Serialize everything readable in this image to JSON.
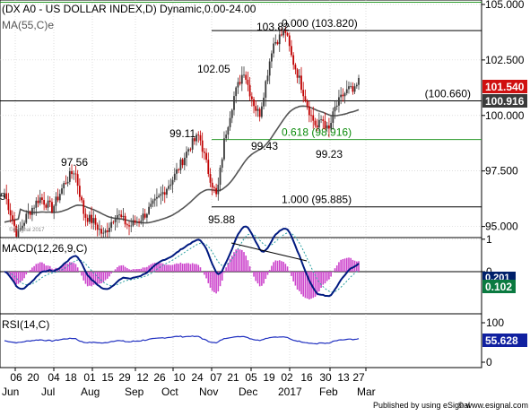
{
  "header": {
    "title": "(DX A0 - US DOLLAR INDEX,D) Dynamic,0.00-24.00",
    "ma_label": "MA(55,C)e"
  },
  "footer": {
    "credit": "Published by using eSignal",
    "site": "© www.esignal.com"
  },
  "watermark": "©eSignal 2017",
  "colors": {
    "grid": "#c8c8c8",
    "frame": "#000000",
    "bear_candle": "#c00000",
    "bull_candle": "#3a3a3a",
    "ma": "#555555",
    "fib_line": "#000000",
    "fib_green": "#0a8a0a",
    "green_line": "#2a9a2a",
    "macd_line": "#001a80",
    "signal_line": "#2aa0a0",
    "histogram": "#cc44cc",
    "rsi_line": "#2030c0",
    "badge_price": "#d01010",
    "badge_ma": "#3a3a3a",
    "badge_macd": "#0a7a40",
    "badge_rsi": "#1020a0"
  },
  "chart_data": [
    {
      "id": "price",
      "type": "candlestick",
      "title": "(DX A0 - US DOLLAR INDEX,D) Dynamic,0.00-24.00",
      "overlays": [
        "MA(55,C)e"
      ],
      "ylim": [
        94.5,
        105.2
      ],
      "y_ticks": [
        "105.000",
        "102.500",
        "100.000",
        "97.500",
        "95.000"
      ],
      "y_tick_values": [
        105,
        102.5,
        100,
        97.5,
        95
      ],
      "last_price_badge": "101.540",
      "ma_value_badge": "100.916",
      "horizontal_levels": [
        {
          "label": "(100.660)",
          "value": 100.66
        },
        {
          "label": "0.000 (103.820)",
          "value": 103.82
        },
        {
          "label": "0.618 (98.916)",
          "value": 98.916
        },
        {
          "label": "1.000 (95.885)",
          "value": 95.885
        }
      ],
      "green_level_top": 105.1,
      "annotations": [
        {
          "label": "103.82",
          "value": 103.82
        },
        {
          "label": "102.05",
          "value": 102.05
        },
        {
          "label": "99.11",
          "value": 99.11
        },
        {
          "label": "97.56",
          "value": 97.56
        },
        {
          "label": "99.43",
          "value": 99.43
        },
        {
          "label": "99.23",
          "value": 99.23
        },
        {
          "label": "95.88",
          "value": 95.88
        }
      ],
      "left_partial_tick": "5"
    },
    {
      "id": "macd",
      "type": "line",
      "title": "MACD(12,26,9,C)",
      "ylim": [
        -1.3,
        1.05
      ],
      "y_ticks": [
        "1",
        "0"
      ],
      "y_tick_values": [
        1,
        0
      ],
      "badge_top": "0.201",
      "badge_value": "0.102"
    },
    {
      "id": "rsi",
      "type": "line",
      "title": "RSI(14,C)",
      "ylim": [
        0,
        100
      ],
      "y_ticks": [
        "100",
        "0"
      ],
      "y_tick_values": [
        100,
        0
      ],
      "badge_value": "55.628"
    }
  ],
  "x_axis": {
    "day_labels": [
      "06",
      "20",
      "04",
      "18",
      "01",
      "15",
      "29",
      "12",
      "26",
      "10",
      "24",
      "07",
      "21",
      "05",
      "19",
      "02",
      "16",
      "30",
      "13",
      "27"
    ],
    "month_labels": [
      "Jun",
      "Jul",
      "Aug",
      "Sep",
      "Oct",
      "Nov",
      "Dec",
      "2017",
      "Feb",
      "Mar"
    ]
  }
}
